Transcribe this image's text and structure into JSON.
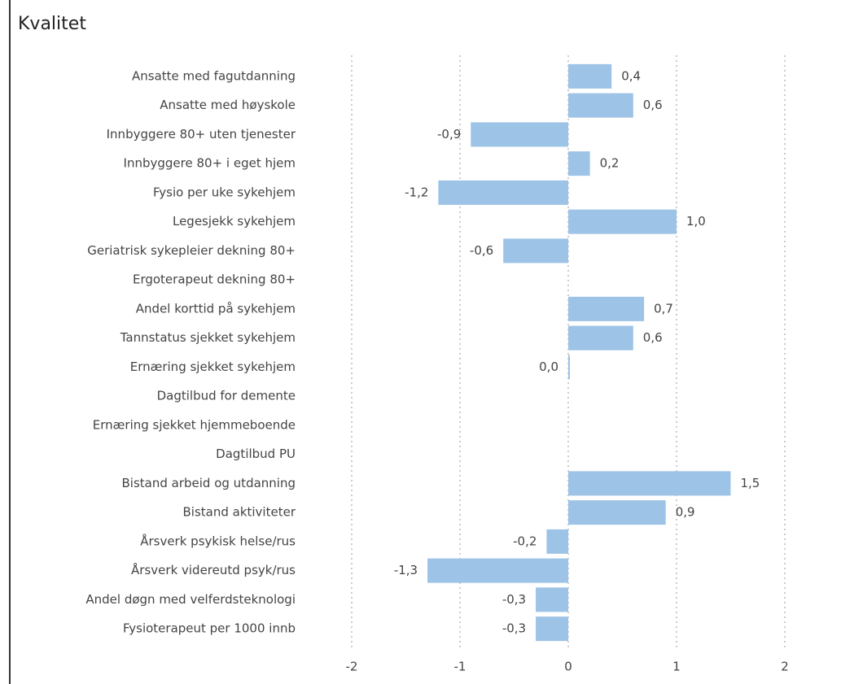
{
  "chart_data": {
    "type": "hbar",
    "title": "Kvalitet",
    "categories": [
      "Ansatte med fagutdanning",
      "Ansatte med høyskole",
      "Innbyggere 80+ uten tjenester",
      "Innbyggere 80+ i eget hjem",
      "Fysio per uke sykehjem",
      "Legesjekk sykehjem",
      "Geriatrisk sykepleier dekning 80+",
      "Ergoterapeut dekning 80+",
      "Andel korttid på sykehjem",
      "Tannstatus sjekket sykehjem",
      "Ernæring sjekket sykehjem",
      "Dagtilbud for demente",
      "Ernæring sjekket hjemmeboende",
      "Dagtilbud PU",
      "Bistand arbeid og utdanning",
      "Bistand aktiviteter",
      "Årsverk psykisk helse/rus",
      "Årsverk videreutd psyk/rus",
      "Andel døgn med velferdsteknologi",
      "Fysioterapeut per 1000 innb"
    ],
    "values": [
      0.4,
      0.6,
      -0.9,
      0.2,
      -1.2,
      1.0,
      -0.6,
      null,
      0.7,
      0.6,
      0.0,
      null,
      null,
      null,
      1.5,
      0.9,
      -0.2,
      -1.3,
      -0.3,
      -0.3
    ],
    "value_labels": [
      "0,4",
      "0,6",
      "-0,9",
      "0,2",
      "-1,2",
      "1,0",
      "-0,6",
      null,
      "0,7",
      "0,6",
      "0,0",
      null,
      null,
      null,
      "1,5",
      "0,9",
      "-0,2",
      "-1,3",
      "-0,3",
      "-0,3"
    ],
    "color": "#9dc3e6",
    "xlim": [
      -2,
      2
    ],
    "xticks": [
      -2,
      -1,
      0,
      1,
      2
    ],
    "grid": true
  }
}
